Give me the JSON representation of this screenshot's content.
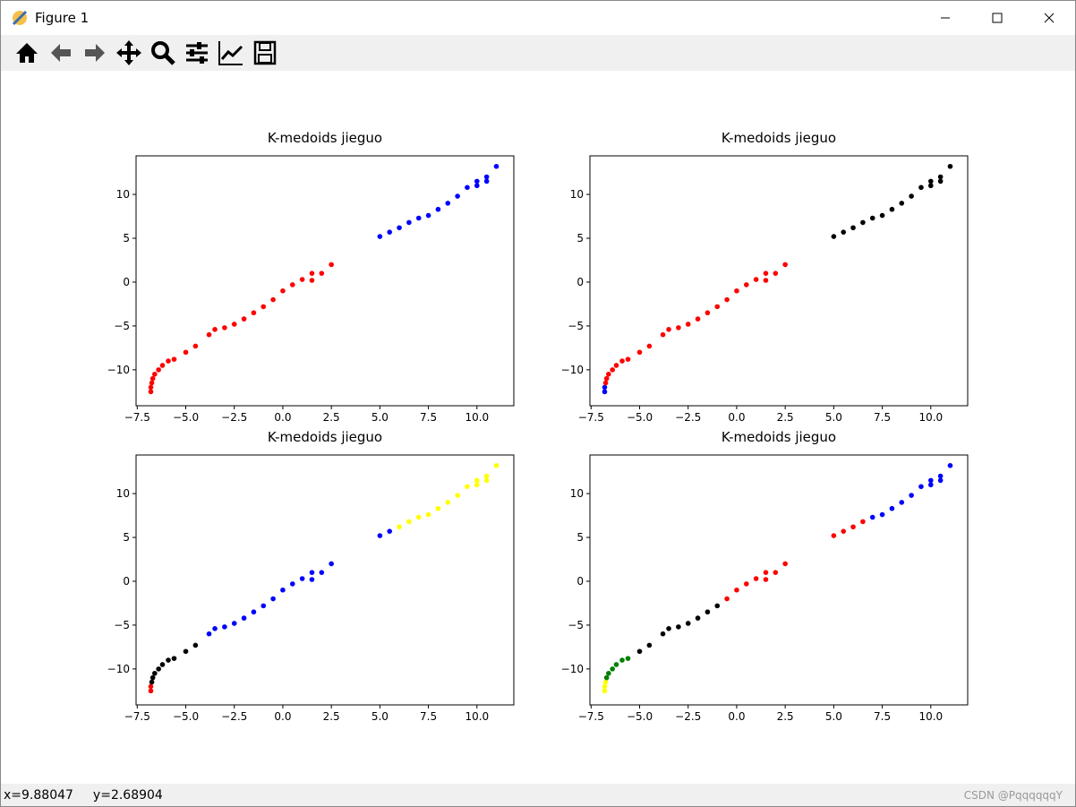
{
  "window": {
    "title": "Figure 1",
    "status_x": "x=9.88047",
    "status_y": "y=2.68904",
    "watermark": "CSDN @PqqqqqqY"
  },
  "chart_data": [
    {
      "type": "scatter",
      "title": "K-medoids jieguo",
      "xlim": [
        -7.56,
        11.9
      ],
      "ylim": [
        -14.1,
        14.4
      ],
      "xticks": [
        {
          "value": -7.5,
          "label": "−7.5"
        },
        {
          "value": -5,
          "label": "−5.0"
        },
        {
          "value": -2.5,
          "label": "−2.5"
        },
        {
          "value": 0,
          "label": "0.0"
        },
        {
          "value": 2.5,
          "label": "2.5"
        },
        {
          "value": 5,
          "label": "5.0"
        },
        {
          "value": 7.5,
          "label": "7.5"
        },
        {
          "value": 10,
          "label": "10.0"
        }
      ],
      "yticks": [
        {
          "value": -10,
          "label": "−10"
        },
        {
          "value": -5,
          "label": "−5"
        },
        0,
        5,
        10
      ],
      "series": [
        {
          "color": "#ff0000",
          "x": [
            -6.8,
            -6.8,
            -6.75,
            -6.7,
            -6.6,
            -6.4,
            -6.2,
            -5.9,
            -5.6,
            -5.0,
            -4.5,
            -3.8,
            -3.5,
            -3.0,
            -2.5,
            -2.0,
            -1.5,
            -1.0,
            -0.5,
            0.0,
            0.5,
            1.0,
            1.5,
            2.0,
            1.5,
            2.5
          ],
          "y": [
            -12.5,
            -12.0,
            -11.5,
            -11.0,
            -10.5,
            -10.0,
            -9.5,
            -9.0,
            -8.8,
            -8.0,
            -7.3,
            -6.0,
            -5.4,
            -5.2,
            -4.8,
            -4.2,
            -3.5,
            -2.8,
            -2.0,
            -1.0,
            -0.3,
            0.3,
            1.0,
            1.0,
            0.2,
            2.0
          ]
        },
        {
          "color": "#0000ff",
          "x": [
            5.0,
            5.5,
            6.0,
            6.5,
            7.0,
            7.5,
            8.0,
            8.5,
            9.0,
            9.5,
            10.0,
            10.5,
            11.0,
            10.5,
            10.0
          ],
          "y": [
            5.2,
            5.7,
            6.2,
            6.8,
            7.3,
            7.6,
            8.3,
            9.0,
            9.8,
            10.8,
            11.5,
            12.0,
            13.2,
            11.5,
            11.0
          ]
        }
      ]
    },
    {
      "type": "scatter",
      "title": "K-medoids jieguo",
      "xlim": [
        -7.56,
        11.9
      ],
      "ylim": [
        -14.1,
        14.4
      ],
      "xticks": [
        {
          "value": -7.5,
          "label": "−7.5"
        },
        {
          "value": -5,
          "label": "−5.0"
        },
        {
          "value": -2.5,
          "label": "−2.5"
        },
        {
          "value": 0,
          "label": "0.0"
        },
        {
          "value": 2.5,
          "label": "2.5"
        },
        {
          "value": 5,
          "label": "5.0"
        },
        {
          "value": 7.5,
          "label": "7.5"
        },
        {
          "value": 10,
          "label": "10.0"
        }
      ],
      "yticks": [
        {
          "value": -10,
          "label": "−10"
        },
        {
          "value": -5,
          "label": "−5"
        },
        0,
        5,
        10
      ],
      "series": [
        {
          "color": "#0000ff",
          "x": [
            -6.8,
            -6.8
          ],
          "y": [
            -12.5,
            -12.0
          ]
        },
        {
          "color": "#ff0000",
          "x": [
            -6.75,
            -6.7,
            -6.6,
            -6.4,
            -6.2,
            -5.9,
            -5.6,
            -5.0,
            -4.5,
            -3.8,
            -3.5,
            -3.0,
            -2.5,
            -2.0,
            -1.5,
            -1.0,
            -0.5,
            0.0,
            0.5,
            1.0,
            1.5,
            2.0,
            1.5,
            2.5
          ],
          "y": [
            -11.5,
            -11.0,
            -10.5,
            -10.0,
            -9.5,
            -9.0,
            -8.8,
            -8.0,
            -7.3,
            -6.0,
            -5.4,
            -5.2,
            -4.8,
            -4.2,
            -3.5,
            -2.8,
            -2.0,
            -1.0,
            -0.3,
            0.3,
            1.0,
            1.0,
            0.2,
            2.0
          ]
        },
        {
          "color": "#000000",
          "x": [
            5.0,
            5.5,
            6.0,
            6.5,
            7.0,
            7.5,
            8.0,
            8.5,
            9.0,
            9.5,
            10.0,
            10.5,
            11.0,
            10.5,
            10.0
          ],
          "y": [
            5.2,
            5.7,
            6.2,
            6.8,
            7.3,
            7.6,
            8.3,
            9.0,
            9.8,
            10.8,
            11.5,
            12.0,
            13.2,
            11.5,
            11.0
          ]
        }
      ]
    },
    {
      "type": "scatter",
      "title": "K-medoids jieguo",
      "xlim": [
        -7.56,
        11.9
      ],
      "ylim": [
        -14.1,
        14.4
      ],
      "xticks": [
        {
          "value": -7.5,
          "label": "−7.5"
        },
        {
          "value": -5,
          "label": "−5.0"
        },
        {
          "value": -2.5,
          "label": "−2.5"
        },
        {
          "value": 0,
          "label": "0.0"
        },
        {
          "value": 2.5,
          "label": "2.5"
        },
        {
          "value": 5,
          "label": "5.0"
        },
        {
          "value": 7.5,
          "label": "7.5"
        },
        {
          "value": 10,
          "label": "10.0"
        }
      ],
      "yticks": [
        {
          "value": -10,
          "label": "−10"
        },
        {
          "value": -5,
          "label": "−5"
        },
        0,
        5,
        10
      ],
      "series": [
        {
          "color": "#ff0000",
          "x": [
            -6.8,
            -6.8
          ],
          "y": [
            -12.5,
            -12.0
          ]
        },
        {
          "color": "#000000",
          "x": [
            -6.75,
            -6.7,
            -6.6,
            -6.4,
            -6.2,
            -5.9,
            -5.6,
            -5.0,
            -4.5
          ],
          "y": [
            -11.5,
            -11.0,
            -10.5,
            -10.0,
            -9.5,
            -9.0,
            -8.8,
            -8.0,
            -7.3
          ]
        },
        {
          "color": "#0000ff",
          "x": [
            -3.8,
            -3.5,
            -3.0,
            -2.5,
            -2.0,
            -1.5,
            -1.0,
            -0.5,
            0.0,
            0.5,
            1.0,
            1.5,
            2.0,
            1.5,
            2.5,
            5.0,
            5.5
          ],
          "y": [
            -6.0,
            -5.4,
            -5.2,
            -4.8,
            -4.2,
            -3.5,
            -2.8,
            -2.0,
            -1.0,
            -0.3,
            0.3,
            1.0,
            1.0,
            0.2,
            2.0,
            5.2,
            5.7
          ]
        },
        {
          "color": "#ffff00",
          "x": [
            6.0,
            6.5,
            7.0,
            7.5,
            8.0,
            8.5,
            9.0,
            9.5,
            10.0,
            10.5,
            11.0,
            10.5,
            10.0
          ],
          "y": [
            6.2,
            6.8,
            7.3,
            7.6,
            8.3,
            9.0,
            9.8,
            10.8,
            11.5,
            12.0,
            13.2,
            11.5,
            11.0
          ]
        }
      ]
    },
    {
      "type": "scatter",
      "title": "K-medoids jieguo",
      "xlim": [
        -7.56,
        11.9
      ],
      "ylim": [
        -14.1,
        14.4
      ],
      "xticks": [
        {
          "value": -7.5,
          "label": "−7.5"
        },
        {
          "value": -5,
          "label": "−5.0"
        },
        {
          "value": -2.5,
          "label": "−2.5"
        },
        {
          "value": 0,
          "label": "0.0"
        },
        {
          "value": 2.5,
          "label": "2.5"
        },
        {
          "value": 5,
          "label": "5.0"
        },
        {
          "value": 7.5,
          "label": "7.5"
        },
        {
          "value": 10,
          "label": "10.0"
        }
      ],
      "yticks": [
        {
          "value": -10,
          "label": "−10"
        },
        {
          "value": -5,
          "label": "−5"
        },
        0,
        5,
        10
      ],
      "series": [
        {
          "color": "#ffff00",
          "x": [
            -6.8,
            -6.8,
            -6.75
          ],
          "y": [
            -12.5,
            -12.0,
            -11.5
          ]
        },
        {
          "color": "#008000",
          "x": [
            -6.7,
            -6.6,
            -6.4,
            -6.2,
            -5.9,
            -5.6
          ],
          "y": [
            -11.0,
            -10.5,
            -10.0,
            -9.5,
            -9.0,
            -8.8
          ]
        },
        {
          "color": "#000000",
          "x": [
            -5.0,
            -4.5,
            -3.8,
            -3.5,
            -3.0,
            -2.5,
            -2.0,
            -1.5,
            -1.0
          ],
          "y": [
            -8.0,
            -7.3,
            -6.0,
            -5.4,
            -5.2,
            -4.8,
            -4.2,
            -3.5,
            -2.8
          ]
        },
        {
          "color": "#ff0000",
          "x": [
            -0.5,
            0.0,
            0.5,
            1.0,
            1.5,
            2.0,
            1.5,
            2.5,
            5.0,
            5.5,
            6.0,
            6.5
          ],
          "y": [
            -2.0,
            -1.0,
            -0.3,
            0.3,
            1.0,
            1.0,
            0.2,
            2.0,
            5.2,
            5.7,
            6.2,
            6.8
          ]
        },
        {
          "color": "#0000ff",
          "x": [
            7.0,
            7.5,
            8.0,
            8.5,
            9.0,
            9.5,
            10.0,
            10.5,
            11.0,
            10.5,
            10.0
          ],
          "y": [
            7.3,
            7.6,
            8.3,
            9.0,
            9.8,
            10.8,
            11.5,
            12.0,
            13.2,
            11.5,
            11.0
          ]
        }
      ]
    }
  ]
}
